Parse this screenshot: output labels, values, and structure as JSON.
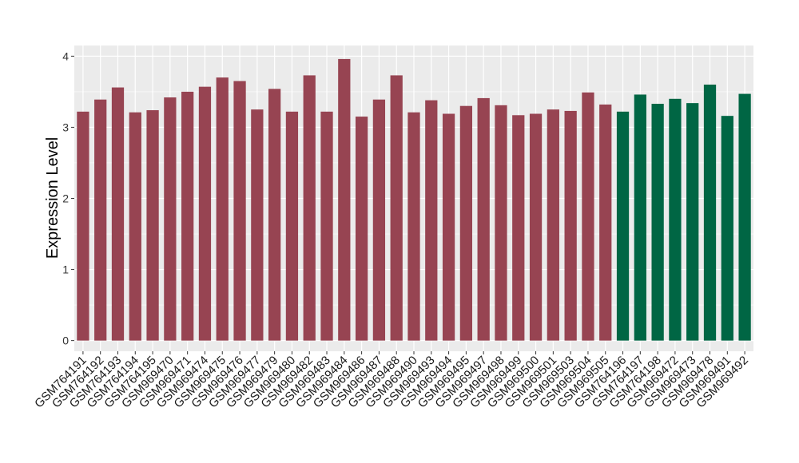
{
  "chart_data": {
    "type": "bar",
    "ylabel": "Expression Level",
    "xlabel": "",
    "ylim": [
      -0.15,
      4.15
    ],
    "yticks": [
      0,
      1,
      2,
      3,
      4
    ],
    "grid": true,
    "legend": "none",
    "colors": {
      "group1": "#974452",
      "group2": "#006644",
      "panel": "#ebebeb",
      "grid": "#ffffff"
    },
    "categories": [
      "GSM764191",
      "GSM764192",
      "GSM764193",
      "GSM764194",
      "GSM764195",
      "GSM969470",
      "GSM969471",
      "GSM969474",
      "GSM969475",
      "GSM969476",
      "GSM969477",
      "GSM969479",
      "GSM969480",
      "GSM969482",
      "GSM969483",
      "GSM969484",
      "GSM969486",
      "GSM969487",
      "GSM969488",
      "GSM969490",
      "GSM969493",
      "GSM969494",
      "GSM969495",
      "GSM969497",
      "GSM969498",
      "GSM969499",
      "GSM969500",
      "GSM969501",
      "GSM969503",
      "GSM969504",
      "GSM969505",
      "GSM764196",
      "GSM764197",
      "GSM764198",
      "GSM969472",
      "GSM969473",
      "GSM969478",
      "GSM969491",
      "GSM969492"
    ],
    "values": [
      3.22,
      3.39,
      3.56,
      3.21,
      3.24,
      3.42,
      3.5,
      3.57,
      3.7,
      3.65,
      3.25,
      3.54,
      3.22,
      3.73,
      3.22,
      3.96,
      3.15,
      3.39,
      3.73,
      3.21,
      3.38,
      3.19,
      3.3,
      3.41,
      3.31,
      3.17,
      3.19,
      3.25,
      3.23,
      3.49,
      3.32,
      3.22,
      3.46,
      3.33,
      3.4,
      3.34,
      3.6,
      3.16,
      3.47
    ],
    "groups": [
      1,
      1,
      1,
      1,
      1,
      1,
      1,
      1,
      1,
      1,
      1,
      1,
      1,
      1,
      1,
      1,
      1,
      1,
      1,
      1,
      1,
      1,
      1,
      1,
      1,
      1,
      1,
      1,
      1,
      1,
      1,
      2,
      2,
      2,
      2,
      2,
      2,
      2,
      2
    ]
  }
}
